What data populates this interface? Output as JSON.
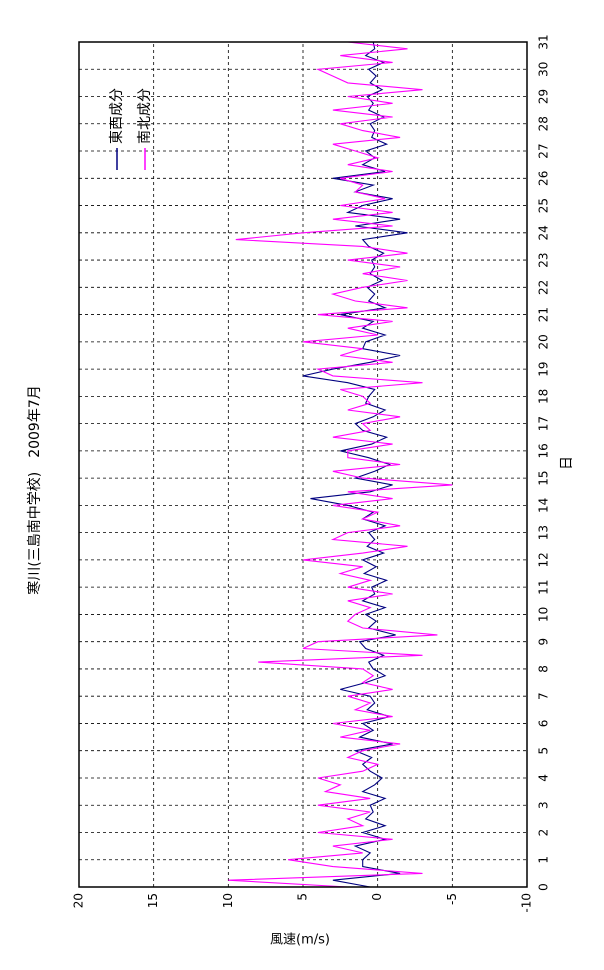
{
  "chart_data": {
    "type": "line",
    "title": "寒川(三島南中学校)　2009年7月",
    "x_label": "日",
    "y_label": "風速(m/s)",
    "x": [
      0,
      0.25,
      0.5,
      0.75,
      1,
      1.25,
      1.5,
      1.75,
      2,
      2.25,
      2.5,
      2.75,
      3,
      3.25,
      3.5,
      3.75,
      4,
      4.25,
      4.5,
      4.75,
      5,
      5.25,
      5.5,
      5.75,
      6,
      6.25,
      6.5,
      6.75,
      7,
      7.25,
      7.5,
      7.75,
      8,
      8.25,
      8.5,
      8.75,
      9,
      9.25,
      9.5,
      9.75,
      10,
      10.25,
      10.5,
      10.75,
      11,
      11.25,
      11.5,
      11.75,
      12,
      12.25,
      12.5,
      12.75,
      13,
      13.25,
      13.5,
      13.75,
      14,
      14.25,
      14.5,
      14.75,
      15,
      15.25,
      15.5,
      15.75,
      16,
      16.25,
      16.5,
      16.75,
      17,
      17.25,
      17.5,
      17.75,
      18,
      18.25,
      18.5,
      18.75,
      19,
      19.25,
      19.5,
      19.75,
      20,
      20.25,
      20.5,
      20.75,
      21,
      21.25,
      21.5,
      21.75,
      22,
      22.25,
      22.5,
      22.75,
      23,
      23.25,
      23.5,
      23.75,
      24,
      24.25,
      24.5,
      24.75,
      25,
      25.25,
      25.5,
      25.75,
      26,
      26.25,
      26.5,
      26.75,
      27,
      27.25,
      27.5,
      27.75,
      28,
      28.25,
      28.5,
      28.75,
      29,
      29.25,
      29.5,
      29.75,
      30,
      30.25,
      30.5,
      30.75,
      31
    ],
    "series": [
      {
        "name": "東西成分",
        "color": "#000080",
        "values": [
          0.5,
          3,
          -1.5,
          1,
          1,
          0.5,
          1.5,
          -0.5,
          1,
          -0.5,
          0.8,
          0.3,
          0.5,
          -0.5,
          1,
          0.2,
          -0.3,
          0.5,
          1,
          0.4,
          1.5,
          -1,
          1.2,
          0.3,
          1,
          -0.8,
          0.7,
          0.2,
          0.5,
          2.5,
          0.8,
          -0.5,
          0.3,
          0.6,
          -0.4,
          0.8,
          1.2,
          -1.2,
          0.6,
          0.1,
          0.8,
          -0.5,
          1,
          0.2,
          0.4,
          -0.6,
          0.9,
          0.1,
          1,
          -0.4,
          0.7,
          0.2,
          0.6,
          -0.5,
          1,
          0.3,
          2,
          4.5,
          0.5,
          -1,
          1.5,
          0.2,
          -0.8,
          0.6,
          2.5,
          0.4,
          -0.6,
          1,
          1.5,
          0.3,
          -0.5,
          0.8,
          0.6,
          0.2,
          2,
          5,
          3,
          0.5,
          -1.5,
          1,
          0.8,
          -0.5,
          1,
          0.3,
          2.5,
          -0.5,
          0.6,
          0.2,
          0.7,
          -0.3,
          0.5,
          0.2,
          0.4,
          -0.4,
          0.6,
          1,
          -2,
          1.5,
          -1.5,
          2,
          1,
          -1,
          1.5,
          0.3,
          3,
          -0.5,
          1,
          0.2,
          0.8,
          -0.6,
          0.4,
          0.2,
          0.5,
          -0.4,
          0.6,
          0.3,
          0.7,
          -0.3,
          0.5,
          0.1,
          0.6,
          -0.4,
          0.8,
          0.2,
          0.3
        ]
      },
      {
        "name": "南北成分",
        "color": "#ff00ff",
        "values": [
          2,
          10,
          -3,
          3,
          6,
          1,
          3,
          -1,
          4,
          1,
          2,
          0.5,
          4,
          0.5,
          3.5,
          2.5,
          4,
          1,
          0,
          2,
          1,
          -1.5,
          2.5,
          0.5,
          3,
          -1,
          1.5,
          0.5,
          2,
          -1,
          1,
          0.3,
          1,
          8,
          -3,
          5,
          4,
          -4,
          1,
          2,
          1.5,
          0.5,
          2,
          -1,
          2,
          0.5,
          2.5,
          1,
          5,
          1,
          -2,
          3,
          2,
          -1.5,
          1,
          0,
          3,
          -1,
          2,
          -5,
          1,
          3,
          -1.5,
          2,
          2,
          -1,
          3,
          0.5,
          1,
          -1.5,
          2,
          0.5,
          1,
          2.5,
          -3,
          3,
          4,
          -1,
          2.5,
          1,
          5,
          0,
          2,
          -1,
          4,
          -2,
          1.5,
          3,
          1,
          -2,
          1,
          -1.5,
          2,
          -2,
          1,
          9.5,
          5,
          -1,
          3,
          -1,
          2.5,
          -0.5,
          1.5,
          1,
          2.5,
          -1,
          2,
          0,
          1.5,
          3,
          -1.5,
          1,
          2.5,
          -1,
          3,
          -1,
          2,
          -3,
          2,
          3,
          4,
          -1,
          2.5,
          -2,
          2
        ]
      }
    ],
    "xlim": [
      0,
      31
    ],
    "xticks": [
      0,
      1,
      2,
      3,
      4,
      5,
      6,
      7,
      8,
      9,
      10,
      11,
      12,
      13,
      14,
      15,
      16,
      17,
      18,
      19,
      20,
      21,
      22,
      23,
      24,
      25,
      26,
      27,
      28,
      29,
      30,
      31
    ],
    "ylim": [
      -10,
      20
    ],
    "yticks": [
      -10,
      -5,
      0,
      5,
      10,
      15,
      20
    ],
    "grid": true,
    "legend": "upper right"
  }
}
